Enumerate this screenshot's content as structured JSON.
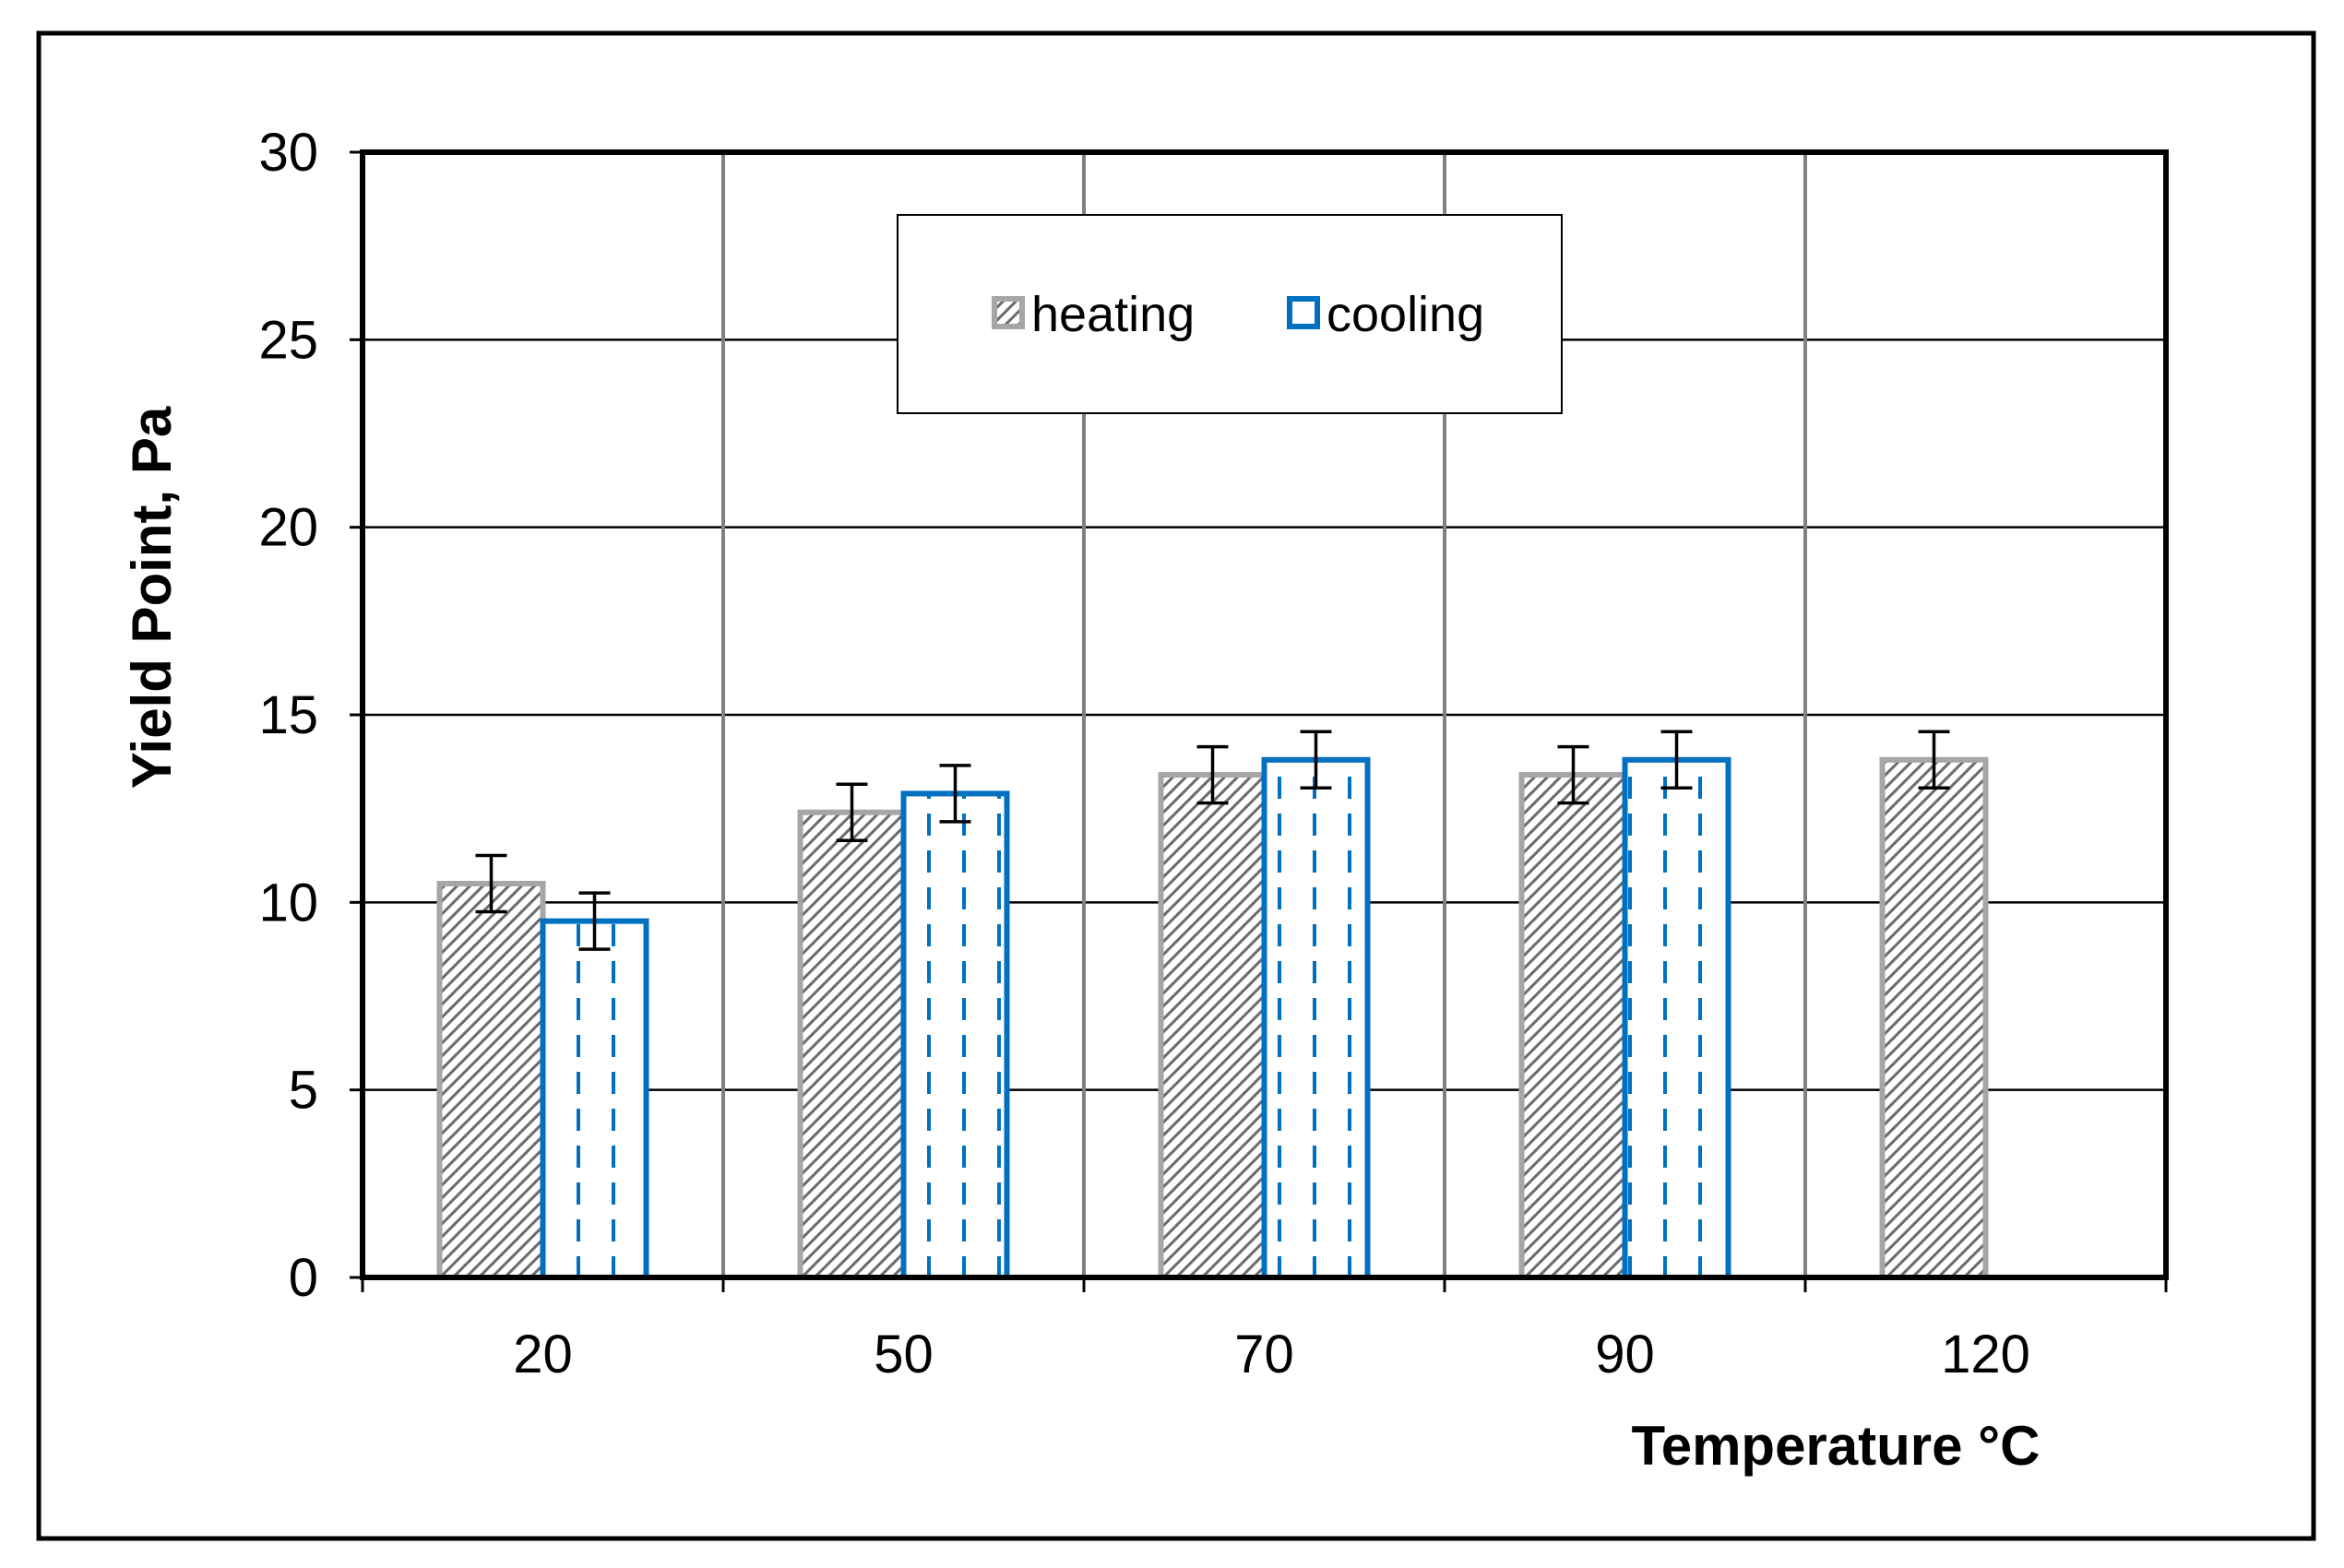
{
  "chart_data": {
    "type": "bar",
    "categories": [
      "20",
      "50",
      "70",
      "90",
      "120"
    ],
    "series": [
      {
        "name": "heating",
        "values": [
          10.5,
          12.4,
          13.4,
          13.4,
          13.8
        ],
        "errors": [
          0.75,
          0.75,
          0.75,
          0.75,
          0.75
        ]
      },
      {
        "name": "cooling",
        "values": [
          9.5,
          12.9,
          13.8,
          13.8,
          null
        ],
        "errors": [
          0.75,
          0.75,
          0.75,
          0.75,
          null
        ]
      }
    ],
    "title": "",
    "xlabel": "Temperature °C",
    "ylabel": "Yield Point, Pa",
    "ylim": [
      0,
      30
    ],
    "yticks": [
      "0",
      "5",
      "10",
      "15",
      "20",
      "25",
      "30"
    ],
    "grid": true,
    "legend_position": "top-center",
    "colors": {
      "heating": "#a6a6a6",
      "cooling": "#0070c0",
      "gridline": "#000000",
      "vertical_grid": "#808080",
      "error_bar": "#000000"
    }
  }
}
